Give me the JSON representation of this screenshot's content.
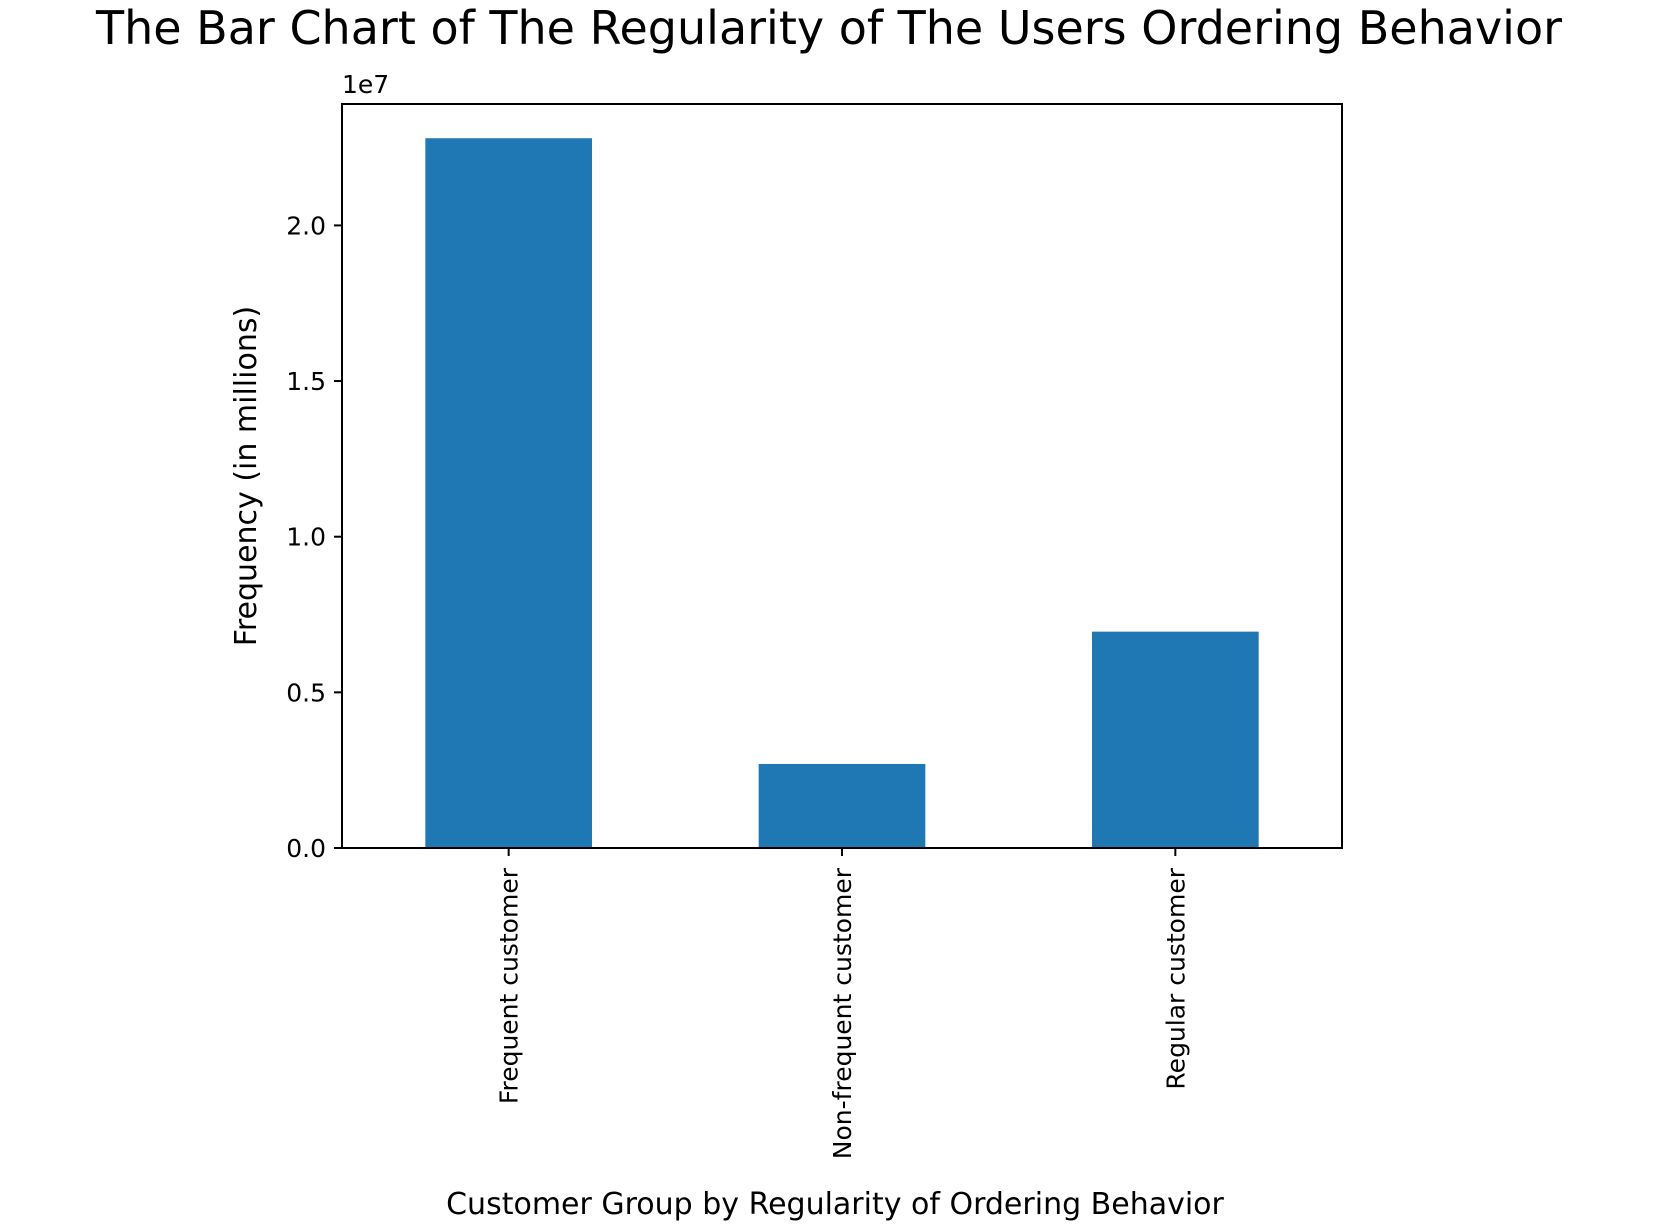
{
  "chart_data": {
    "type": "bar",
    "title": "The Bar Chart of The Regularity of The Users Ordering Behavior",
    "xlabel": "Customer Group by Regularity of Ordering Behavior",
    "ylabel": "Frequency (in millions)",
    "y_offset_label": "1e7",
    "categories": [
      "Frequent customer",
      "Non-frequent customer",
      "Regular customer"
    ],
    "values": [
      22800000,
      2700000,
      6950000
    ],
    "ylim": [
      0,
      23900000
    ],
    "yticks": [
      0,
      5000000,
      10000000,
      15000000,
      20000000
    ],
    "ytick_labels": [
      "0.0",
      "0.5",
      "1.0",
      "1.5",
      "2.0"
    ],
    "bar_color": "#1f77b4",
    "grid": false,
    "legend": "none"
  }
}
